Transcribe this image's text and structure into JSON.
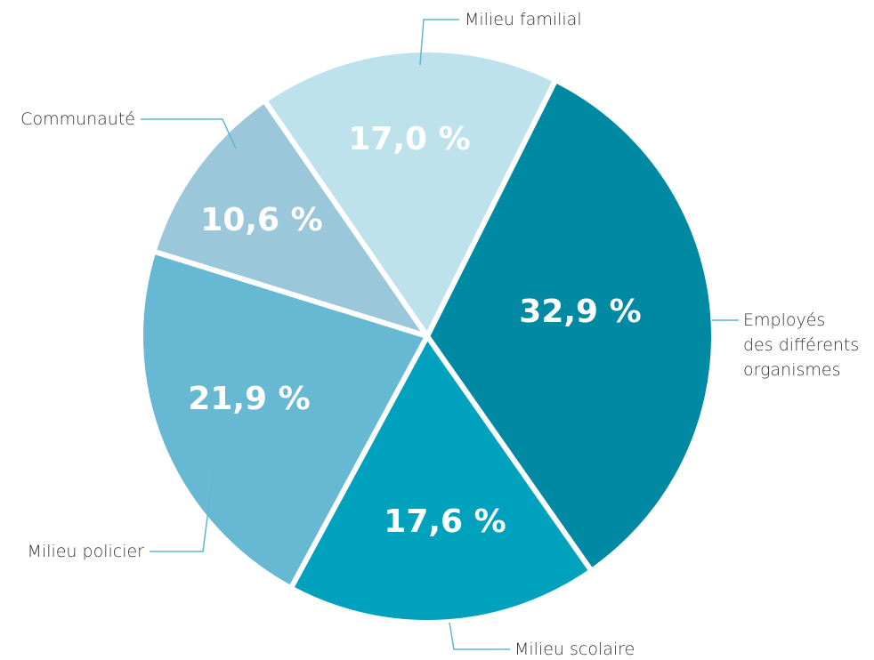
{
  "chart_data": {
    "type": "pie",
    "categories": [
      "Employés\ndes différents\norganismes",
      "Milieu scolaire",
      "Milieu policier",
      "Communauté",
      "Milieu familial"
    ],
    "values": [
      32.9,
      17.6,
      21.9,
      10.6,
      17.0
    ],
    "value_labels": [
      "32,9 %",
      "17,6 %",
      "21,9 %",
      "10,6 %",
      "17,0 %"
    ],
    "colors": [
      "#0089a2",
      "#00a1bd",
      "#67b8d3",
      "#9ac8da",
      "#bde2ec"
    ]
  }
}
